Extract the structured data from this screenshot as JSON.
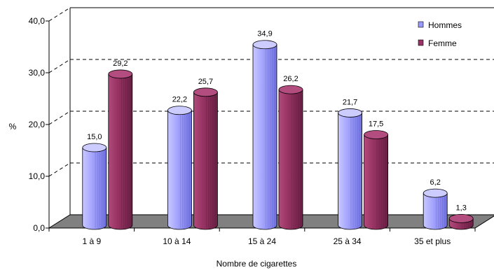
{
  "chart_data": {
    "type": "bar",
    "categories": [
      "1 à 9",
      "10 à 14",
      "15 à 24",
      "25 à 34",
      "35 et plus"
    ],
    "series": [
      {
        "name": "Hommes",
        "values": [
          15.0,
          22.2,
          34.9,
          21.7,
          6.2
        ],
        "labels": [
          "15,0",
          "22,2",
          "34,9",
          "21,7",
          "6,2"
        ],
        "color": "#9999ff"
      },
      {
        "name": "Femme",
        "values": [
          29.2,
          25.7,
          26.2,
          17.5,
          1.3
        ],
        "labels": [
          "29,2",
          "25,7",
          "26,2",
          "17,5",
          "1,3"
        ],
        "color": "#993366"
      }
    ],
    "ylim": [
      0,
      40
    ],
    "yticks": [
      "0,0",
      "10,0",
      "20,0",
      "30,0",
      "40,0"
    ],
    "ylabel": "%",
    "xlabel": "Nombre de cigarettes",
    "grid": true,
    "legend": "top-right",
    "style": "3d-cylinder"
  }
}
